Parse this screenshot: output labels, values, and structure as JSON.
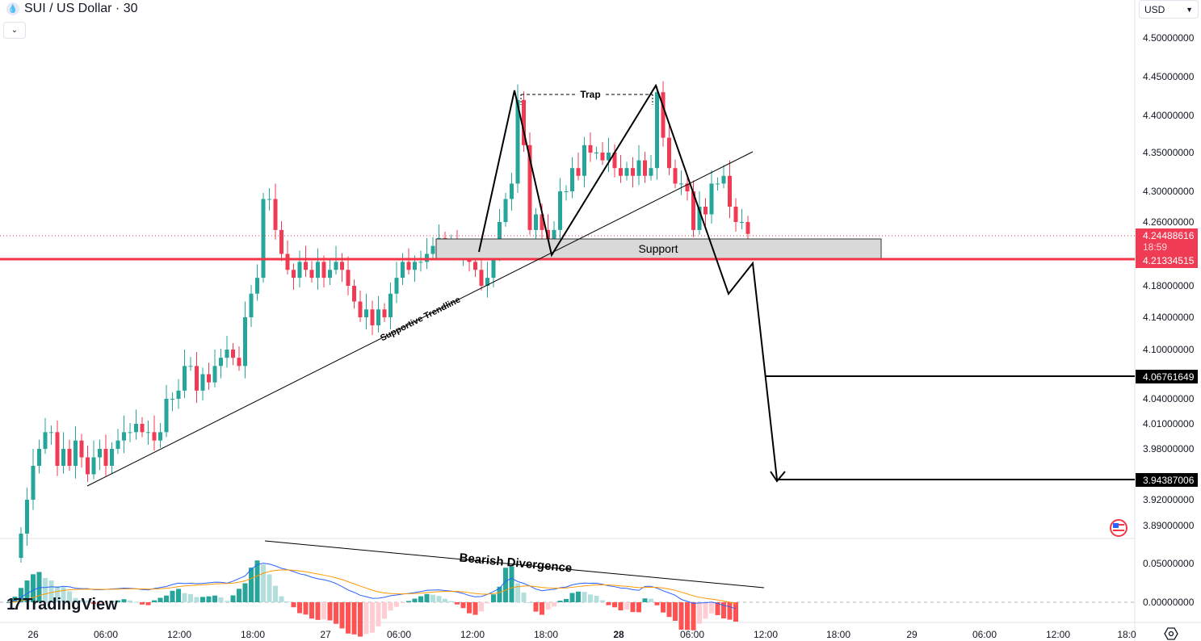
{
  "header": {
    "title": "SUI / US Dollar · 30",
    "symbol_icon": "sui-drop-icon",
    "currency": "USD"
  },
  "branding": {
    "logo": "TradingView"
  },
  "annotations": {
    "trap": "Trap",
    "support": "Support",
    "trendline": "Supportive Trendline",
    "divergence": "Bearish Divergence"
  },
  "colors": {
    "up": "#26a69a",
    "down": "#ef3c54",
    "support_line": "#f23645",
    "macd": "#2962ff",
    "signal": "#ff9800"
  },
  "price_axis": {
    "ticks": [
      "4.50000000",
      "4.45000000",
      "4.40000000",
      "4.35000000",
      "4.30000000",
      "4.26000000",
      "4.18000000",
      "4.14000000",
      "4.10000000",
      "4.04000000",
      "4.01000000",
      "3.98000000",
      "3.92000000",
      "3.89000000"
    ],
    "current_price": "4.24488616",
    "countdown": "18:59",
    "support_price": "4.21334515",
    "target1": "4.06761649",
    "target2": "3.94387006"
  },
  "macd_axis": {
    "ticks": [
      "0.05000000",
      "0.00000000"
    ]
  },
  "time_axis": {
    "labels": [
      "26",
      "06:00",
      "12:00",
      "18:00",
      "27",
      "06:00",
      "12:00",
      "18:00",
      "28",
      "06:00",
      "12:00",
      "18:00",
      "29",
      "06:00",
      "12:00",
      "18:0"
    ]
  },
  "chart_data": {
    "type": "candlestick",
    "interval": "30",
    "y_scale": "linear",
    "closes": [
      3.88,
      3.92,
      3.96,
      3.98,
      4.0,
      4.0,
      3.96,
      3.98,
      3.96,
      3.99,
      3.97,
      3.95,
      3.97,
      3.98,
      3.96,
      3.98,
      3.99,
      4.0,
      4.0,
      4.01,
      4.0,
      4.0,
      3.99,
      4.0,
      4.04,
      4.04,
      4.05,
      4.08,
      4.08,
      4.05,
      4.07,
      4.06,
      4.08,
      4.09,
      4.1,
      4.09,
      4.08,
      4.14,
      4.17,
      4.19,
      4.29,
      4.29,
      4.25,
      4.22,
      4.2,
      4.19,
      4.21,
      4.2,
      4.19,
      4.21,
      4.19,
      4.2,
      4.21,
      4.2,
      4.18,
      4.16,
      4.14,
      4.15,
      4.13,
      4.15,
      4.14,
      4.17,
      4.19,
      4.21,
      4.2,
      4.21,
      4.21,
      4.22,
      4.23,
      4.24,
      4.23,
      4.23,
      4.22,
      4.22,
      4.21,
      4.2,
      4.18,
      4.19,
      4.22,
      4.26,
      4.29,
      4.31,
      4.42,
      4.36,
      4.25,
      4.27,
      4.25,
      4.23,
      4.25,
      4.3,
      4.3,
      4.33,
      4.32,
      4.36,
      4.35,
      4.35,
      4.34,
      4.35,
      4.33,
      4.32,
      4.33,
      4.32,
      4.34,
      4.32,
      4.33,
      4.43,
      4.37,
      4.33,
      4.31,
      4.31,
      4.3,
      4.25,
      4.28,
      4.27,
      4.31,
      4.31,
      4.32,
      4.28,
      4.26,
      4.26,
      4.245
    ],
    "indicator": "MACD"
  }
}
